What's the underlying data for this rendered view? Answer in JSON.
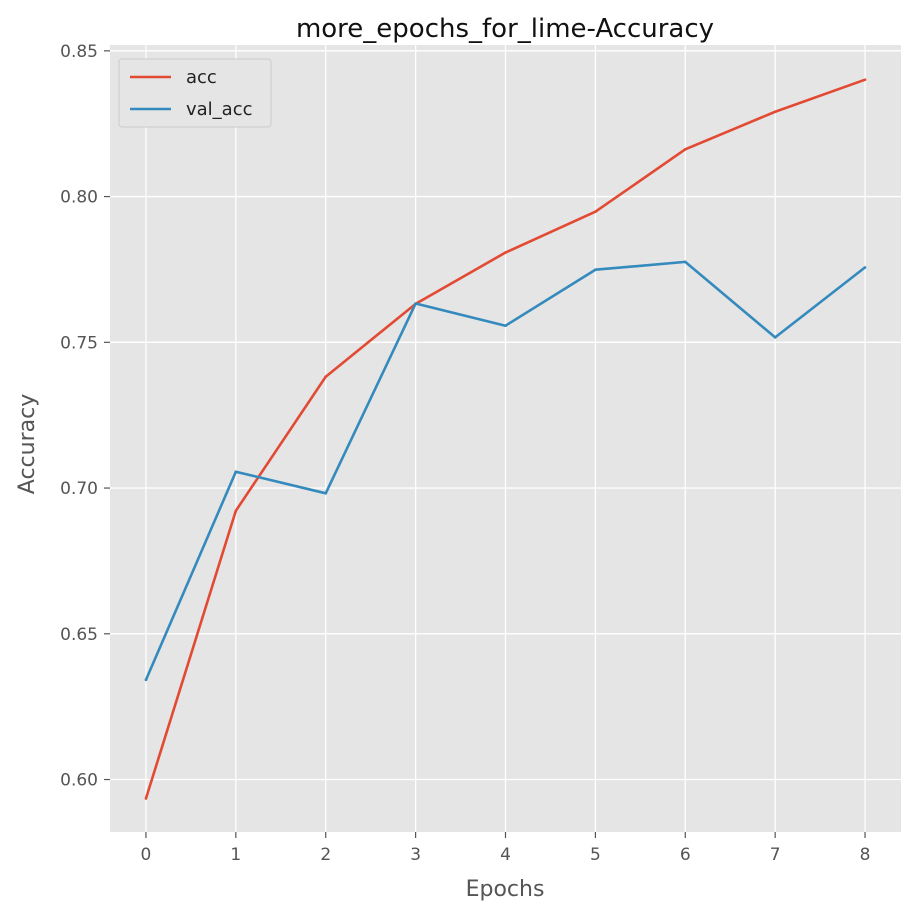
{
  "chart_data": {
    "type": "line",
    "title": "more_epochs_for_lime-Accuracy",
    "xlabel": "Epochs",
    "ylabel": "Accuracy",
    "x": [
      0,
      1,
      2,
      3,
      4,
      5,
      6,
      7,
      8
    ],
    "xlim": [
      -0.4,
      8.4
    ],
    "ylim": [
      0.582,
      0.852
    ],
    "xticks": [
      0,
      1,
      2,
      3,
      4,
      5,
      6,
      7,
      8
    ],
    "yticks": [
      0.6,
      0.65,
      0.7,
      0.75,
      0.8,
      0.85
    ],
    "ytick_labels": [
      "0.60",
      "0.65",
      "0.70",
      "0.75",
      "0.80",
      "0.85"
    ],
    "grid": true,
    "legend_position": "top-left",
    "series": [
      {
        "name": "acc",
        "color": "#e24a33",
        "values": [
          0.5935,
          0.6922,
          0.7382,
          0.7632,
          0.7808,
          0.7948,
          0.8162,
          0.8291,
          0.8401
        ]
      },
      {
        "name": "val_acc",
        "color": "#348abd",
        "values": [
          0.6342,
          0.7056,
          0.6982,
          0.7633,
          0.7557,
          0.7749,
          0.7776,
          0.7517,
          0.7757
        ]
      }
    ]
  }
}
